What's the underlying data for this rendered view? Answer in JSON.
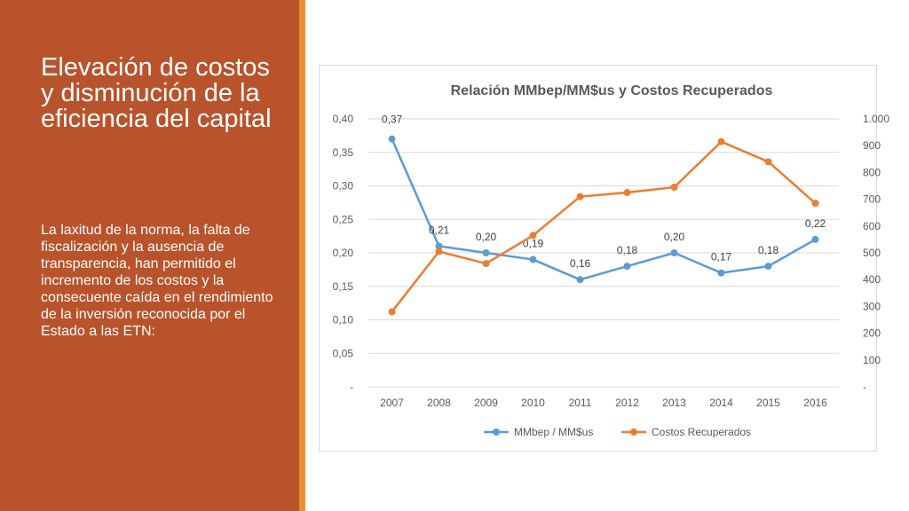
{
  "slide": {
    "title": "Elevación de costos y disminución de la eficiencia del capital",
    "body": "La laxitud de la norma, la falta de fiscalización y la ausencia de transparencia, han permitido el incremento de los costos y la consecuente caída en el rendimiento de la inversión reconocida por el Estado a las ETN:",
    "colors": {
      "panel": "#b9532b",
      "accent": "#e8922e"
    }
  },
  "chart_data": {
    "type": "line",
    "title": "Relación MMbep/MM$us y Costos Recuperados",
    "categories": [
      "2007",
      "2008",
      "2009",
      "2010",
      "2011",
      "2012",
      "2013",
      "2014",
      "2015",
      "2016"
    ],
    "series": [
      {
        "name": "MMbep / MM$us",
        "axis": "left",
        "color": "#5b9bd5",
        "values": [
          0.37,
          0.21,
          0.2,
          0.19,
          0.16,
          0.18,
          0.2,
          0.17,
          0.18,
          0.22
        ],
        "data_labels": [
          "0,37",
          "0,21",
          "0,20",
          "0,19",
          "0,16",
          "0,18",
          "0,20",
          "0,17",
          "0,18",
          "0,22"
        ]
      },
      {
        "name": "Costos Recuperados",
        "axis": "right",
        "color": "#ed7d31",
        "values": [
          280,
          505,
          460,
          565,
          710,
          725,
          745,
          915,
          840,
          685
        ]
      }
    ],
    "y_left": {
      "min": 0,
      "max": 0.4,
      "ticks": [
        "-",
        "0,05",
        "0,10",
        "0,15",
        "0,20",
        "0,25",
        "0,30",
        "0,35",
        "0,40"
      ]
    },
    "y_right": {
      "min": 0,
      "max": 1000,
      "ticks": [
        "-",
        "100",
        "200",
        "300",
        "400",
        "500",
        "600",
        "700",
        "800",
        "900",
        "1.000"
      ]
    },
    "grid": true,
    "legend_position": "bottom"
  }
}
